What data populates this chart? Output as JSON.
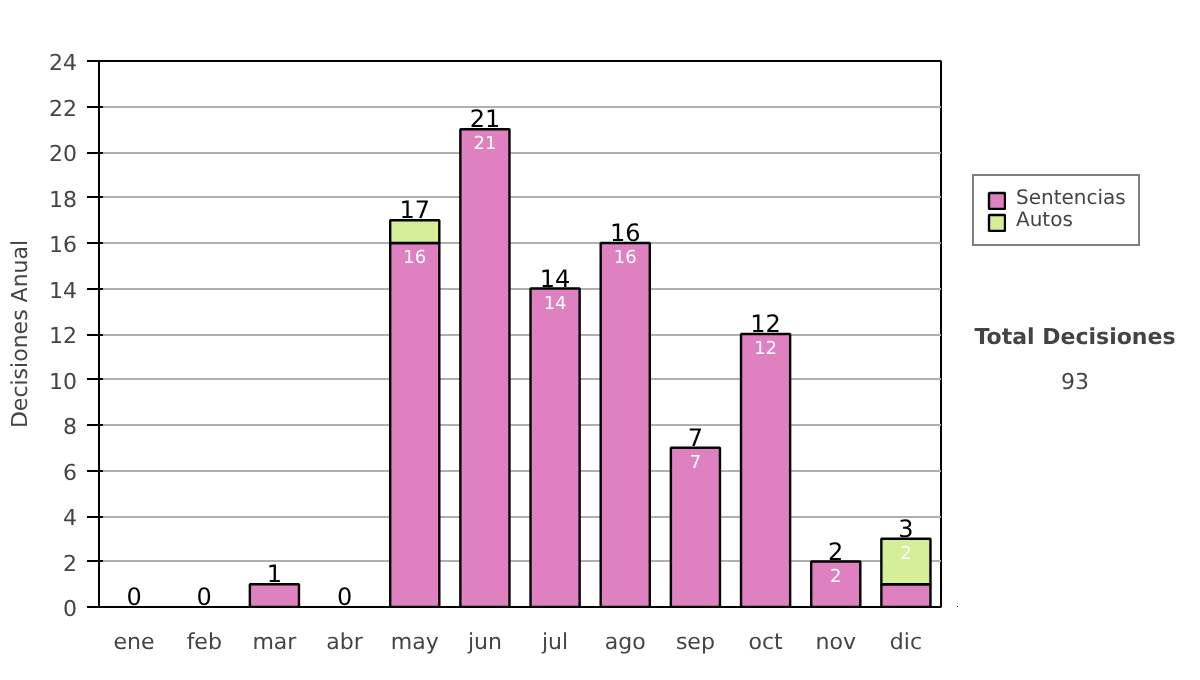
{
  "chart_data": {
    "type": "bar",
    "ylabel": "Decisiones Anual",
    "stacked": true,
    "categories": [
      "ene",
      "feb",
      "mar",
      "abr",
      "may",
      "jun",
      "jul",
      "ago",
      "sep",
      "oct",
      "nov",
      "dic"
    ],
    "series": [
      {
        "name": "Sentencias",
        "color": "#df80c0",
        "values": [
          0,
          0,
          1,
          0,
          16,
          21,
          14,
          16,
          7,
          12,
          2,
          1
        ],
        "value_labels": [
          null,
          null,
          null,
          null,
          "16",
          "21",
          "14",
          "16",
          "7",
          "12",
          "2",
          null
        ]
      },
      {
        "name": "Autos",
        "color": "#d6ee98",
        "values": [
          0,
          0,
          0,
          0,
          1,
          0,
          0,
          0,
          0,
          0,
          0,
          2
        ],
        "value_labels": [
          null,
          null,
          null,
          null,
          null,
          null,
          null,
          null,
          null,
          null,
          null,
          "2"
        ]
      }
    ],
    "totals": [
      "0",
      "0",
      "1",
      "0",
      "17",
      "21",
      "14",
      "16",
      "7",
      "12",
      "2",
      "3"
    ],
    "ylim": [
      0,
      24
    ],
    "yticks": [
      0,
      2,
      4,
      6,
      8,
      10,
      12,
      14,
      16,
      18,
      20,
      22,
      24
    ],
    "grid": "y",
    "legend": "right",
    "annotations": [
      "Total Decisiones",
      "93"
    ]
  }
}
